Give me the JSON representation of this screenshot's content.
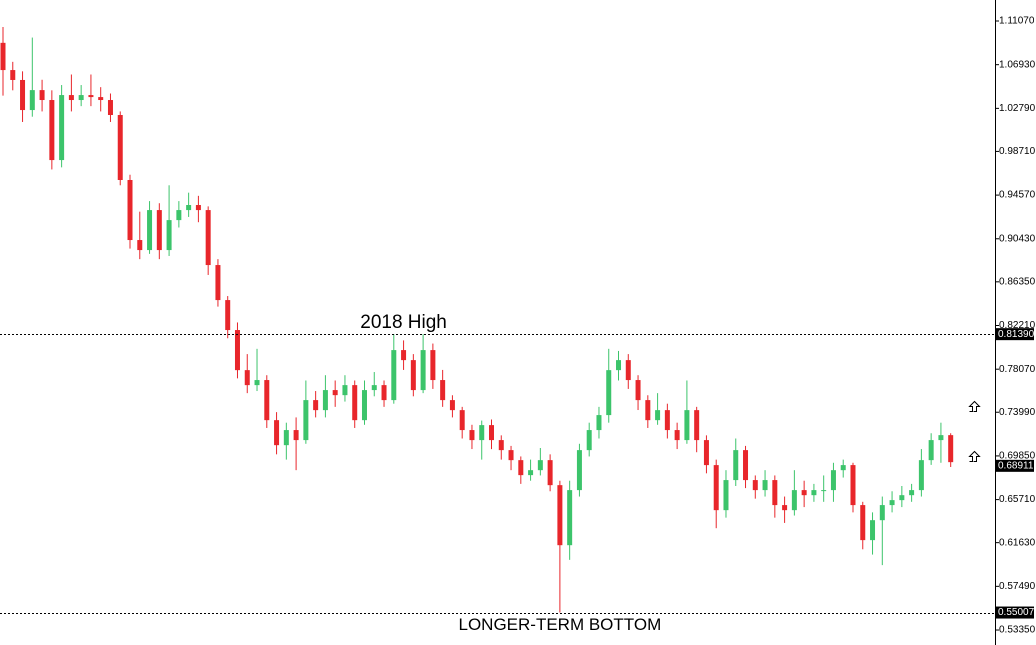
{
  "chart_data": {
    "type": "candlestick",
    "ylim": [
      0.5193,
      1.1306
    ],
    "yticks": [
      {
        "value": 1.1107,
        "label": "1.11070"
      },
      {
        "value": 1.0693,
        "label": "1.06930"
      },
      {
        "value": 1.0279,
        "label": "1.02790"
      },
      {
        "value": 0.9871,
        "label": "0.98710"
      },
      {
        "value": 0.9457,
        "label": "0.94570"
      },
      {
        "value": 0.9043,
        "label": "0.90430"
      },
      {
        "value": 0.8635,
        "label": "0.86350"
      },
      {
        "value": 0.8221,
        "label": "0.82210"
      },
      {
        "value": 0.7807,
        "label": "0.78070"
      },
      {
        "value": 0.7399,
        "label": "0.73990"
      },
      {
        "value": 0.6985,
        "label": "0.69850"
      },
      {
        "value": 0.6571,
        "label": "0.65710"
      },
      {
        "value": 0.6163,
        "label": "0.61630"
      },
      {
        "value": 0.5749,
        "label": "0.57490"
      },
      {
        "value": 0.5335,
        "label": "0.53350"
      }
    ],
    "up_color": "#3cc46b",
    "down_color": "#e8262b",
    "open": [
      1.09,
      1.0642,
      1.0548,
      1.0263,
      1.0452,
      1.0358,
      0.9789,
      1.0405,
      1.0358,
      1.0405,
      1.0386,
      1.0358,
      1.0216,
      0.96,
      0.9031,
      0.8936,
      0.9315,
      0.8936,
      0.922,
      0.9315,
      0.9363,
      0.9315,
      0.8794,
      0.8462,
      0.8178,
      0.7798,
      0.7656,
      0.7704,
      0.7324,
      0.7087,
      0.723,
      0.7135,
      0.7514,
      0.7419,
      0.7609,
      0.7561,
      0.7656,
      0.7324,
      0.7609,
      0.7656,
      0.7514,
      0.7988,
      0.7893,
      0.7609,
      0.7988,
      0.7704,
      0.7514,
      0.7419,
      0.723,
      0.7135,
      0.7277,
      0.7135,
      0.704,
      0.6945,
      0.6803,
      0.685,
      0.6945,
      0.6708,
      0.6139,
      0.6661,
      0.704,
      0.723,
      0.7372,
      0.7798,
      0.7893,
      0.7704,
      0.7514,
      0.7324,
      0.7419,
      0.723,
      0.7135,
      0.7419,
      0.7135,
      0.6898,
      0.6471,
      0.6756,
      0.704,
      0.6756,
      0.6661,
      0.6756,
      0.6519,
      0.6471,
      0.6661,
      0.6613,
      0.6661,
      0.6661,
      0.685,
      0.6898,
      0.6519,
      0.6187,
      0.6376,
      0.6519,
      0.6566,
      0.6613,
      0.6661,
      0.6945,
      0.7135,
      0.7182
    ],
    "high": [
      1.105,
      1.072,
      1.063,
      1.095,
      1.055,
      1.045,
      1.05,
      1.06,
      1.05,
      1.06,
      1.048,
      1.042,
      1.025,
      0.965,
      0.93,
      0.94,
      0.938,
      0.955,
      0.94,
      0.948,
      0.945,
      0.935,
      0.885,
      0.85,
      0.825,
      0.795,
      0.8,
      0.775,
      0.74,
      0.73,
      0.735,
      0.77,
      0.76,
      0.775,
      0.77,
      0.775,
      0.77,
      0.77,
      0.778,
      0.77,
      0.8139,
      0.808,
      0.795,
      0.8139,
      0.805,
      0.78,
      0.756,
      0.745,
      0.728,
      0.732,
      0.733,
      0.718,
      0.708,
      0.698,
      0.695,
      0.706,
      0.7,
      0.675,
      0.675,
      0.71,
      0.73,
      0.745,
      0.8,
      0.798,
      0.795,
      0.775,
      0.756,
      0.758,
      0.748,
      0.73,
      0.77,
      0.745,
      0.718,
      0.695,
      0.685,
      0.715,
      0.708,
      0.68,
      0.685,
      0.68,
      0.66,
      0.685,
      0.675,
      0.672,
      0.68,
      0.692,
      0.695,
      0.692,
      0.655,
      0.645,
      0.66,
      0.665,
      0.67,
      0.672,
      0.705,
      0.72,
      0.73,
      0.72
    ],
    "low": [
      1.04,
      1.045,
      1.015,
      1.02,
      1.025,
      0.97,
      0.972,
      1.025,
      1.03,
      1.03,
      1.025,
      1.015,
      0.955,
      0.895,
      0.885,
      0.89,
      0.885,
      0.888,
      0.915,
      0.925,
      0.92,
      0.87,
      0.84,
      0.81,
      0.772,
      0.758,
      0.76,
      0.725,
      0.7,
      0.695,
      0.685,
      0.71,
      0.735,
      0.735,
      0.745,
      0.75,
      0.725,
      0.728,
      0.755,
      0.745,
      0.748,
      0.78,
      0.755,
      0.758,
      0.762,
      0.745,
      0.735,
      0.715,
      0.705,
      0.695,
      0.705,
      0.695,
      0.685,
      0.672,
      0.675,
      0.68,
      0.665,
      0.5501,
      0.6,
      0.66,
      0.698,
      0.715,
      0.73,
      0.77,
      0.762,
      0.742,
      0.725,
      0.728,
      0.715,
      0.705,
      0.71,
      0.702,
      0.682,
      0.63,
      0.64,
      0.67,
      0.668,
      0.658,
      0.66,
      0.64,
      0.635,
      0.642,
      0.65,
      0.655,
      0.655,
      0.655,
      0.678,
      0.645,
      0.61,
      0.605,
      0.595,
      0.645,
      0.65,
      0.655,
      0.66,
      0.69,
      0.692,
      0.688
    ],
    "close": [
      1.0642,
      1.0548,
      1.0263,
      1.0452,
      1.0358,
      0.9789,
      1.0405,
      1.0358,
      1.0405,
      1.0386,
      1.0358,
      1.0216,
      0.96,
      0.9031,
      0.8936,
      0.9315,
      0.8936,
      0.922,
      0.9315,
      0.9363,
      0.9315,
      0.8794,
      0.8462,
      0.8178,
      0.7798,
      0.7656,
      0.7704,
      0.7324,
      0.7087,
      0.723,
      0.7135,
      0.7514,
      0.7419,
      0.7609,
      0.7561,
      0.7656,
      0.7324,
      0.7609,
      0.7656,
      0.7514,
      0.7988,
      0.7893,
      0.7609,
      0.7988,
      0.7704,
      0.7514,
      0.7419,
      0.723,
      0.7135,
      0.7277,
      0.7135,
      0.704,
      0.6945,
      0.6803,
      0.685,
      0.6945,
      0.6708,
      0.6139,
      0.6661,
      0.704,
      0.723,
      0.7372,
      0.7798,
      0.7893,
      0.7704,
      0.7514,
      0.7324,
      0.7419,
      0.723,
      0.7135,
      0.7419,
      0.7135,
      0.6898,
      0.6471,
      0.6756,
      0.704,
      0.6756,
      0.6661,
      0.6756,
      0.6519,
      0.6471,
      0.6661,
      0.6613,
      0.6661,
      0.6661,
      0.685,
      0.6898,
      0.6519,
      0.6187,
      0.6376,
      0.6519,
      0.6566,
      0.6613,
      0.6661,
      0.6945,
      0.7135,
      0.7182,
      0.6926
    ],
    "levels": [
      {
        "value": 0.8139,
        "label": "0.81390"
      },
      {
        "value": 0.55007,
        "label": "0.55007"
      }
    ],
    "current_price": {
      "value": 0.68911,
      "label": "0.68911"
    },
    "annotations": [
      {
        "text": "2018 High",
        "x_index": 41,
        "value": 0.8139
      },
      {
        "text": "LONGER-TERM BOTTOM",
        "x_index": 57,
        "value": 0.55007
      }
    ]
  }
}
